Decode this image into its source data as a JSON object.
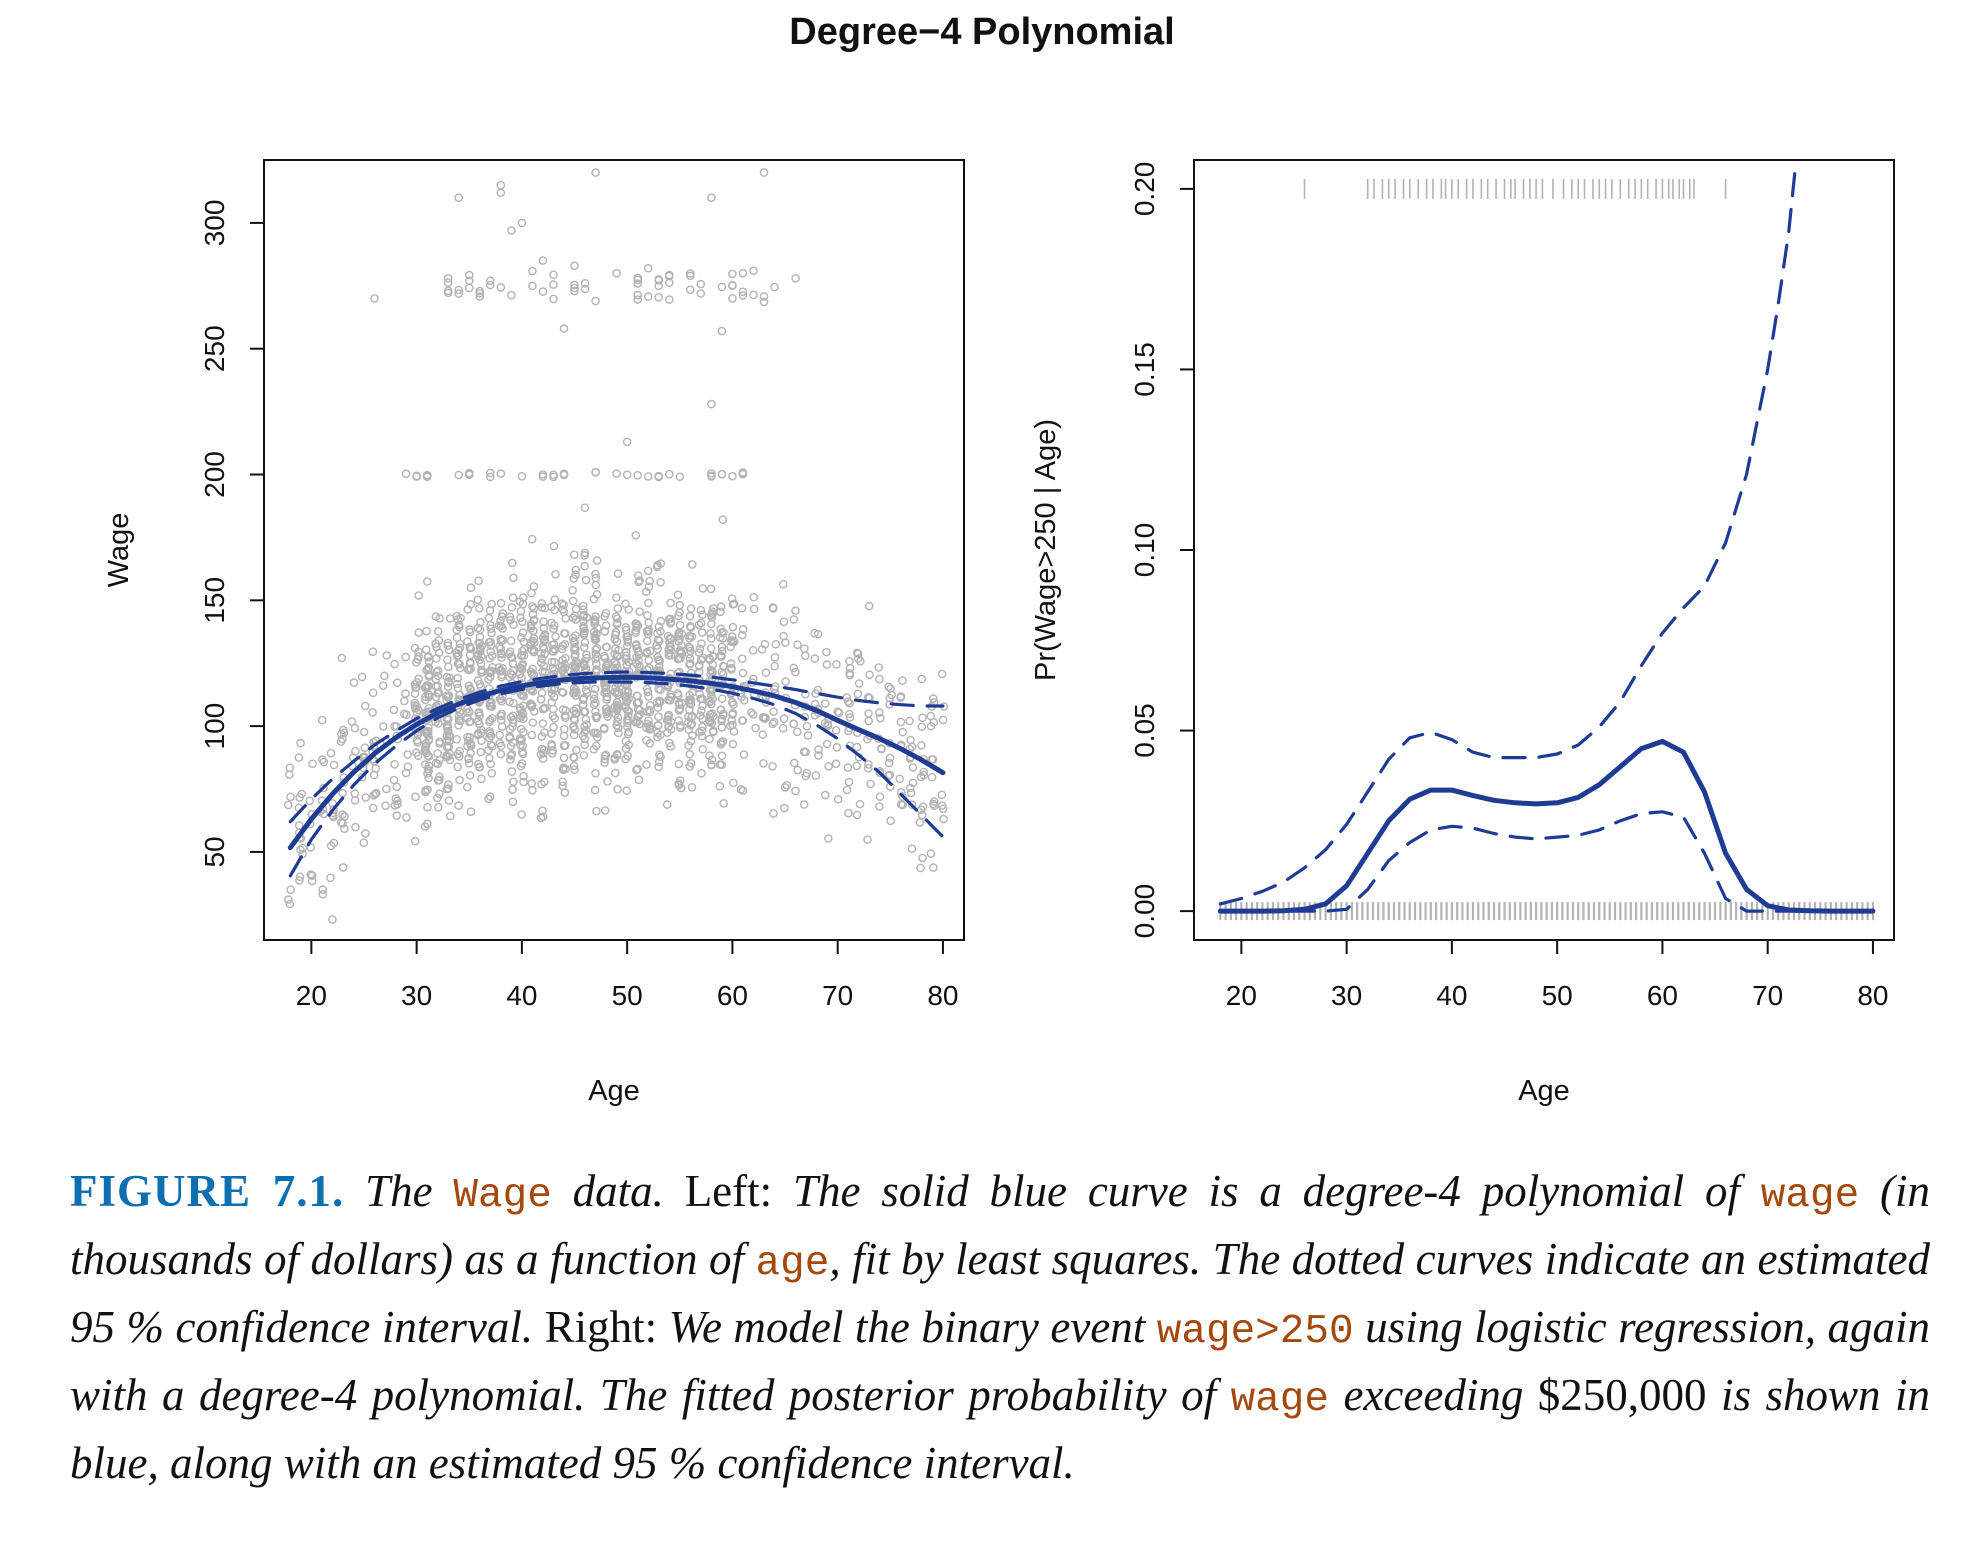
{
  "figure": {
    "title": "Degree−4 Polynomial",
    "caption": {
      "label": "FIGURE 7.1.",
      "segments": [
        {
          "t": "The ",
          "s": "it"
        },
        {
          "t": "Wage",
          "s": "code"
        },
        {
          "t": " data.",
          "s": "it"
        },
        {
          "t": " Left: ",
          "s": "rm"
        },
        {
          "t": "The solid blue curve is a degree-4 polynomial of ",
          "s": "it"
        },
        {
          "t": "wage",
          "s": "code"
        },
        {
          "t": " (in thousands of dollars) as a function of ",
          "s": "it"
        },
        {
          "t": "age",
          "s": "code"
        },
        {
          "t": ", fit by least squares. The dotted curves indicate an estimated 95 % confidence interval.",
          "s": "it"
        },
        {
          "t": " Right: ",
          "s": "rm"
        },
        {
          "t": "We model the binary event ",
          "s": "it"
        },
        {
          "t": "wage>250",
          "s": "code"
        },
        {
          "t": " using logistic regression, again with a degree-4 polynomial. The fitted posterior probability of ",
          "s": "it"
        },
        {
          "t": "wage",
          "s": "code"
        },
        {
          "t": " exceeding ",
          "s": "it"
        },
        {
          "t": "$250,000",
          "s": "rm"
        },
        {
          "t": " is shown in blue, along with an estimated 95 % confidence interval.",
          "s": "it"
        }
      ]
    }
  },
  "colors": {
    "fit": "#1f3c95",
    "points": "#b3b3b3",
    "axis": "#111111"
  },
  "chart_data": [
    {
      "type": "scatter",
      "xlabel": "Age",
      "ylabel": "Wage",
      "xlim": [
        15.5,
        82
      ],
      "ylim": [
        15,
        325
      ],
      "xticks": [
        20,
        30,
        40,
        50,
        60,
        70,
        80
      ],
      "yticks": [
        50,
        100,
        150,
        200,
        250,
        300
      ],
      "grid": false,
      "scatter_points_approx": {
        "high_wage_cluster": [
          [
            34,
            310
          ],
          [
            38,
            315
          ],
          [
            38,
            312
          ],
          [
            39,
            297
          ],
          [
            40,
            300
          ],
          [
            47,
            320
          ],
          [
            58,
            310
          ],
          [
            63,
            320
          ],
          [
            42,
            285
          ],
          [
            45,
            283
          ],
          [
            49,
            280
          ],
          [
            52,
            282
          ],
          [
            56,
            279
          ],
          [
            61,
            280
          ],
          [
            62,
            281
          ],
          [
            44,
            258
          ],
          [
            59,
            257
          ],
          [
            58,
            228
          ],
          [
            50,
            213
          ],
          [
            26,
            270
          ],
          [
            33,
            278
          ],
          [
            36,
            272
          ],
          [
            41,
            275
          ],
          [
            46,
            276
          ],
          [
            53,
            275
          ],
          [
            57,
            272
          ],
          [
            60,
            270
          ],
          [
            66,
            278
          ]
        ],
        "main_body_summary": "approx. 3000 points, age 18-80, wage mostly 40-200, densest at age 30-60 around 80-140"
      },
      "series": [
        {
          "name": "",
          "style": "solid",
          "x": [
            18,
            20,
            22,
            24,
            26,
            28,
            30,
            32,
            34,
            36,
            38,
            40,
            42,
            44,
            46,
            48,
            50,
            52,
            54,
            56,
            58,
            60,
            62,
            64,
            66,
            68,
            70,
            72,
            74,
            76,
            78,
            80
          ],
          "values": [
            51.7,
            63.1,
            73.0,
            81.6,
            89.1,
            95.4,
            100.7,
            105.2,
            108.8,
            111.8,
            114.2,
            116.0,
            117.4,
            118.4,
            119.0,
            119.3,
            119.4,
            119.2,
            118.7,
            118.0,
            117.0,
            115.7,
            114.0,
            112.0,
            109.4,
            106.2,
            102.3,
            98.6,
            95.0,
            91.0,
            86.5,
            81.5
          ]
        },
        {
          "name": "",
          "style": "dashed",
          "x": [
            18,
            20,
            22,
            24,
            26,
            28,
            30,
            32,
            34,
            36,
            38,
            40,
            42,
            44,
            46,
            48,
            50,
            52,
            54,
            56,
            58,
            60,
            62,
            64,
            66,
            68,
            70,
            72,
            74,
            76,
            78,
            80
          ],
          "values": [
            62.0,
            71.0,
            79.0,
            86.0,
            92.5,
            98.0,
            103.0,
            107.0,
            110.6,
            113.5,
            115.9,
            117.7,
            119.1,
            120.2,
            120.9,
            121.3,
            121.5,
            121.3,
            120.9,
            120.3,
            119.5,
            118.4,
            117.2,
            115.9,
            114.5,
            113.0,
            111.5,
            110.2,
            109.2,
            108.5,
            108.0,
            108.0
          ]
        },
        {
          "name": "",
          "style": "dashed",
          "x": [
            18,
            20,
            22,
            24,
            26,
            28,
            30,
            32,
            34,
            36,
            38,
            40,
            42,
            44,
            46,
            48,
            50,
            52,
            54,
            56,
            58,
            60,
            62,
            64,
            66,
            68,
            70,
            72,
            74,
            76,
            78,
            80
          ],
          "values": [
            40.5,
            55.0,
            66.5,
            76.5,
            85.0,
            92.0,
            98.2,
            103.3,
            107.3,
            110.4,
            112.8,
            114.6,
            116.0,
            117.0,
            117.4,
            117.6,
            117.5,
            117.3,
            116.8,
            115.9,
            114.7,
            113.1,
            111.0,
            108.5,
            105.0,
            100.5,
            95.0,
            88.5,
            81.5,
            73.0,
            64.5,
            56.0
          ]
        }
      ]
    },
    {
      "type": "line",
      "xlabel": "Age",
      "ylabel": "Pr(Wage>250 | Age)",
      "xlim": [
        15.5,
        82
      ],
      "ylim": [
        -0.008,
        0.208
      ],
      "xticks": [
        20,
        30,
        40,
        50,
        60,
        70,
        80
      ],
      "yticks": [
        "0.00",
        "0.05",
        "0.10",
        "0.15",
        "0.20"
      ],
      "grid": false,
      "rug": {
        "top_y": 0.2,
        "bottom_y": 0.0,
        "top_ages": [
          26,
          32,
          32.6,
          33.4,
          34,
          34.6,
          35.4,
          36,
          36.8,
          37.6,
          38.2,
          39,
          39.4,
          40,
          40.6,
          41.4,
          42,
          42.8,
          43.4,
          44.2,
          45,
          45.6,
          46,
          46.8,
          47.4,
          48,
          48.6,
          49.6,
          50.6,
          51.4,
          52,
          52.6,
          53.4,
          54,
          54.6,
          55.2,
          56,
          56.8,
          57.4,
          58,
          58.6,
          59.4,
          60,
          60.6,
          61,
          61.6,
          62,
          62.6,
          63,
          66
        ]
      },
      "series": [
        {
          "name": "",
          "style": "solid",
          "x": [
            18,
            20,
            22,
            24,
            26,
            28,
            30,
            32,
            34,
            36,
            38,
            40,
            42,
            44,
            46,
            48,
            50,
            52,
            54,
            56,
            58,
            60,
            62,
            64,
            66,
            68,
            70,
            72,
            74,
            76,
            78,
            80
          ],
          "values": [
            0.0,
            0.0,
            0.0,
            0.0001,
            0.0005,
            0.002,
            0.007,
            0.016,
            0.025,
            0.031,
            0.0335,
            0.0335,
            0.032,
            0.0307,
            0.03,
            0.0297,
            0.03,
            0.0315,
            0.035,
            0.04,
            0.045,
            0.047,
            0.044,
            0.033,
            0.016,
            0.006,
            0.0015,
            0.0003,
            0.0001,
            0.0,
            0.0,
            0.0
          ]
        },
        {
          "name": "",
          "style": "dashed",
          "x": [
            18,
            20,
            22,
            24,
            26,
            28,
            30,
            32,
            34,
            36,
            38,
            40,
            42,
            44,
            46,
            48,
            50,
            52,
            54,
            56,
            58,
            60,
            62,
            64,
            66,
            68,
            70,
            71,
            72,
            72.7
          ],
          "values": [
            0.002,
            0.0035,
            0.0055,
            0.008,
            0.012,
            0.017,
            0.024,
            0.033,
            0.042,
            0.048,
            0.0495,
            0.0475,
            0.044,
            0.0425,
            0.0425,
            0.0425,
            0.0435,
            0.046,
            0.051,
            0.058,
            0.068,
            0.077,
            0.084,
            0.09,
            0.102,
            0.121,
            0.15,
            0.168,
            0.188,
            0.21
          ]
        },
        {
          "name": "",
          "style": "dashed",
          "x": [
            18,
            20,
            22,
            24,
            26,
            28,
            30,
            32,
            34,
            36,
            38,
            40,
            42,
            44,
            46,
            48,
            50,
            52,
            54,
            56,
            58,
            60,
            62,
            64,
            66,
            68,
            70,
            72,
            74,
            76,
            78,
            80
          ],
          "values": [
            0.0,
            0.0,
            0.0,
            0.0,
            0.0,
            0.0,
            0.0005,
            0.006,
            0.014,
            0.019,
            0.0225,
            0.0235,
            0.023,
            0.0215,
            0.0205,
            0.02,
            0.0205,
            0.021,
            0.0225,
            0.025,
            0.027,
            0.0275,
            0.026,
            0.016,
            0.0035,
            0.0,
            0.0,
            0.0,
            0.0,
            0.0,
            0.0,
            0.0
          ]
        }
      ]
    }
  ]
}
